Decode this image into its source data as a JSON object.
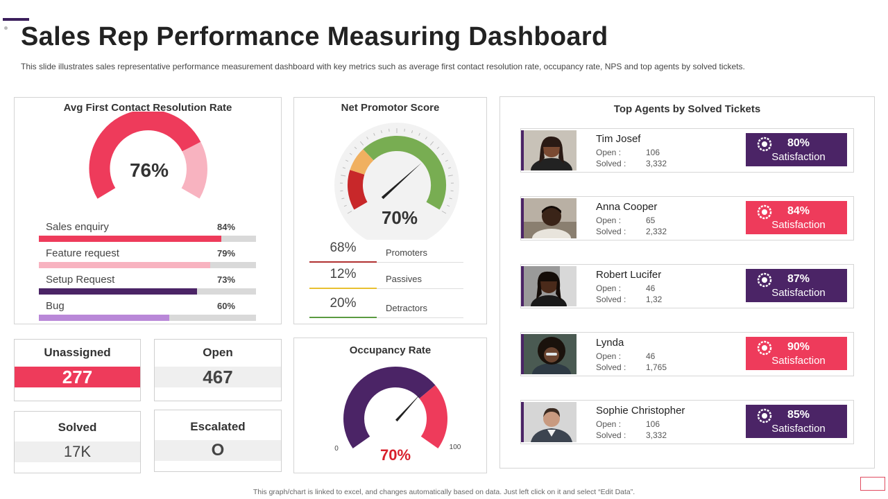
{
  "page": {
    "title": "Sales Rep Performance Measuring Dashboard",
    "subtitle": "This slide illustrates sales representative performance measurement dashboard with key metrics such as average first contact resolution rate, occupancy rate, NPS and top agents by solved tickets.",
    "footer": "This graph/chart is linked to excel, and changes automatically based on data. Just left click on it and select “Edit Data”."
  },
  "colors": {
    "purple": "#4b2466",
    "pink": "#ee3b5b",
    "light_pink": "#f8b3c0",
    "lavender": "#b988d8",
    "grey": "#d9d9d9"
  },
  "fcr": {
    "title": "Avg First Contact Resolution Rate",
    "center_label": "76%",
    "items": [
      {
        "label": "Sales enquiry",
        "value_label": "84%"
      },
      {
        "label": "Feature request",
        "value_label": "79%"
      },
      {
        "label": "Setup Request",
        "value_label": "73%"
      },
      {
        "label": "Bug",
        "value_label": "60%"
      }
    ]
  },
  "nps": {
    "title": "Net Promotor Score",
    "center_label": "70%",
    "legend": [
      {
        "pct": "68%",
        "name": "Promoters"
      },
      {
        "pct": "12%",
        "name": "Passives"
      },
      {
        "pct": "20%",
        "name": "Detractors"
      }
    ]
  },
  "stats": {
    "unassigned": {
      "title": "Unassigned",
      "value": "277"
    },
    "open": {
      "title": "Open",
      "value": "467"
    },
    "solved": {
      "title": "Solved",
      "value": "17K"
    },
    "escalated": {
      "title": "Escalated",
      "value": "O"
    }
  },
  "occupancy": {
    "title": "Occupancy Rate",
    "center_label": "70%",
    "min_label": "0",
    "max_label": "100"
  },
  "agents": {
    "title": "Top Agents by Solved  Tickets",
    "open_label": "Open :",
    "solved_label": "Solved :",
    "satisfaction_label": "Satisfaction",
    "list": [
      {
        "name": "Tim Josef",
        "open": "106",
        "solved": "3,332",
        "satisfaction": "80%",
        "color": "#4b2466"
      },
      {
        "name": "Anna Cooper",
        "open": "65",
        "solved": "2,332",
        "satisfaction": "84%",
        "color": "#ee3b5b"
      },
      {
        "name": "Robert Lucifer",
        "open": "46",
        "solved": "1,32",
        "satisfaction": "87%",
        "color": "#4b2466"
      },
      {
        "name": "Lynda",
        "open": "46",
        "solved": "1,765",
        "satisfaction": "90%",
        "color": "#ee3b5b"
      },
      {
        "name": "Sophie Christopher",
        "open": "106",
        "solved": "3,332",
        "satisfaction": "85%",
        "color": "#4b2466"
      }
    ]
  },
  "chart_data": [
    {
      "type": "gauge",
      "title": "Avg First Contact Resolution Rate",
      "value": 76,
      "range": [
        0,
        100
      ],
      "breakdown": {
        "type": "bar",
        "categories": [
          "Sales enquiry",
          "Feature request",
          "Setup Request",
          "Bug"
        ],
        "values": [
          84,
          79,
          73,
          60
        ]
      }
    },
    {
      "type": "gauge",
      "title": "Net Promotor Score",
      "value": 70,
      "segments": [
        {
          "name": "Detractors",
          "value": 20,
          "color": "#c8282a"
        },
        {
          "name": "Passives",
          "value": 12,
          "color": "#f0b060"
        },
        {
          "name": "Promoters",
          "value": 68,
          "color": "#78ad52"
        }
      ]
    },
    {
      "type": "gauge",
      "title": "Occupancy Rate",
      "value": 70,
      "range": [
        0,
        100
      ]
    }
  ]
}
